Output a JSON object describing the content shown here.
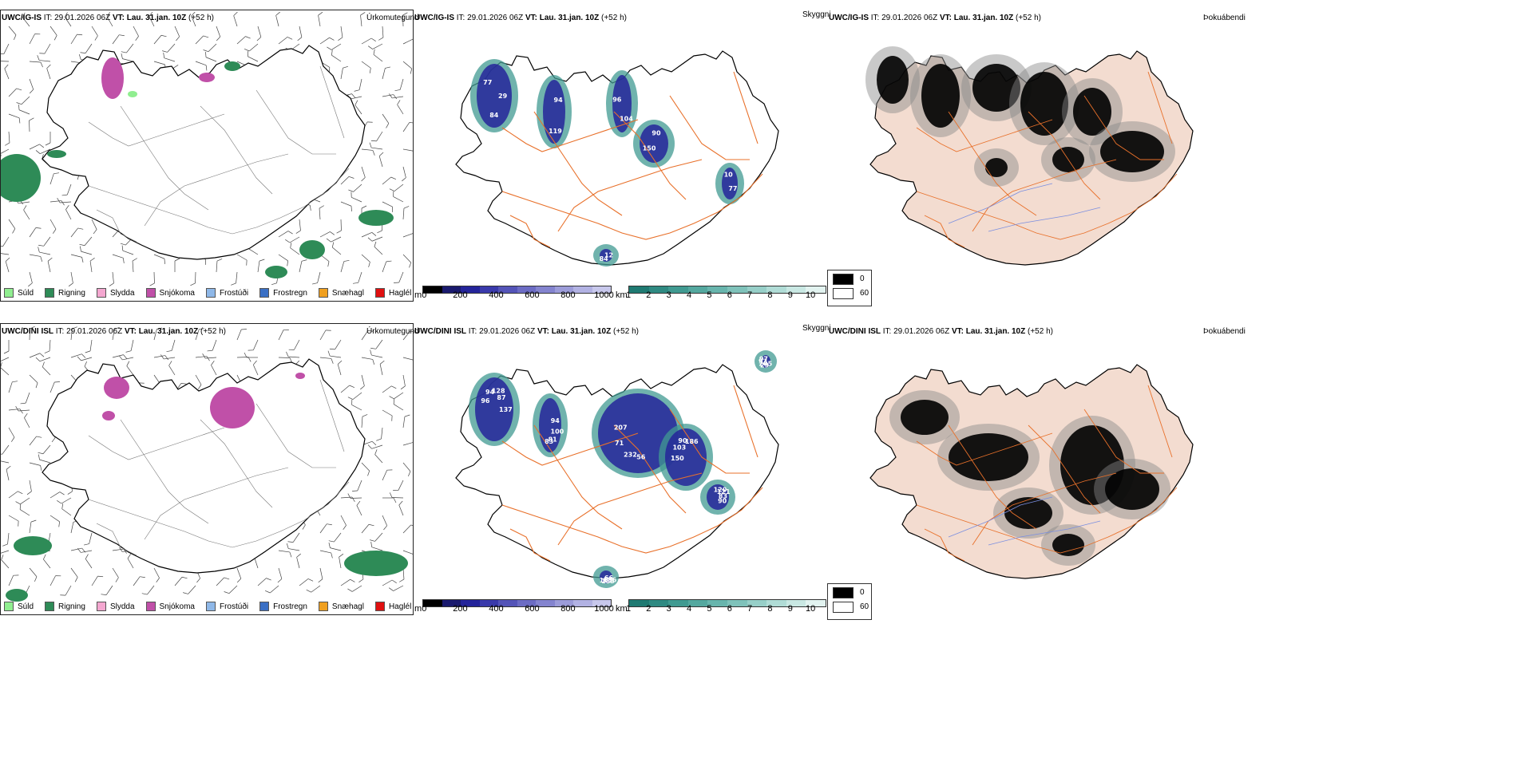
{
  "rows": [
    {
      "source": "UWC/IG-IS",
      "it_text": "IT: 29.01.2026 06Z",
      "vt_text": "VT: Lau. 31.jan. 10Z",
      "lead_text": "(+52 h)",
      "precip_type_label": "Úrkomutegund",
      "visibility_label": "Skyggni",
      "fog_label": "Þokuábendi",
      "visibility_values": [
        "29",
        "119",
        "96",
        "90",
        "77",
        "84",
        "77",
        "94",
        "104",
        "150",
        "10",
        "12",
        "84"
      ]
    },
    {
      "source": "UWC/DINI ISL",
      "it_text": "IT: 29.01.2026 06Z",
      "vt_text": "VT: Lau. 31.jan. 10Z",
      "lead_text": "(+52 h)",
      "precip_type_label": "Úrkomutegund",
      "visibility_label": "Skyggni",
      "fog_label": "Þokuábendi",
      "visibility_values": [
        "137",
        "83",
        "207",
        "186",
        "90",
        "103",
        "97",
        "87",
        "81",
        "71",
        "90",
        "83",
        "183",
        "93",
        "128",
        "100",
        "232",
        "103",
        "121",
        "136",
        "205",
        "94",
        "94",
        "56",
        "150",
        "120",
        "66",
        "29",
        "96"
      ]
    }
  ],
  "precip_legend": [
    {
      "label": "Súld",
      "color": "#90ee90"
    },
    {
      "label": "Rigning",
      "color": "#2e8b57"
    },
    {
      "label": "Slydda",
      "color": "#f4a7d0"
    },
    {
      "label": "Snjókoma",
      "color": "#c050a8"
    },
    {
      "label": "Frostúði",
      "color": "#8fb8e8"
    },
    {
      "label": "Frostregn",
      "color": "#3a6fc4"
    },
    {
      "label": "Snæhagl",
      "color": "#f0a020"
    },
    {
      "label": "Haglél",
      "color": "#e01010"
    }
  ],
  "ceiling_scale": {
    "unit": "m",
    "ticks": [
      "0",
      "200",
      "400",
      "600",
      "800",
      "1000"
    ],
    "colors": [
      "#000000",
      "#1a1a6e",
      "#24249a",
      "#3a3aab",
      "#5454b8",
      "#6c6cc4",
      "#8484cf",
      "#9c9cd9",
      "#b2b2e3",
      "#c8c8ec"
    ]
  },
  "visibility_scale": {
    "unit": "km",
    "ticks": [
      "1",
      "2",
      "3",
      "4",
      "5",
      "6",
      "7",
      "8",
      "9",
      "10"
    ],
    "colors": [
      "#1f7a72",
      "#2f8a82",
      "#409a91",
      "#54a89f",
      "#68b5ad",
      "#7fc2ba",
      "#97cfc8",
      "#b0dcd6",
      "#c9e8e3",
      "#e2f3f0"
    ]
  },
  "fog_scale": {
    "black_value": "0",
    "white_value": "60",
    "black_color": "#000000",
    "white_color": "#ffffff"
  },
  "colors": {
    "land_tint": "#f3dcd0",
    "roads": "#e8702a",
    "rivers": "#7a8ee0",
    "coast": "#000000",
    "wind_barb": "#444444"
  }
}
